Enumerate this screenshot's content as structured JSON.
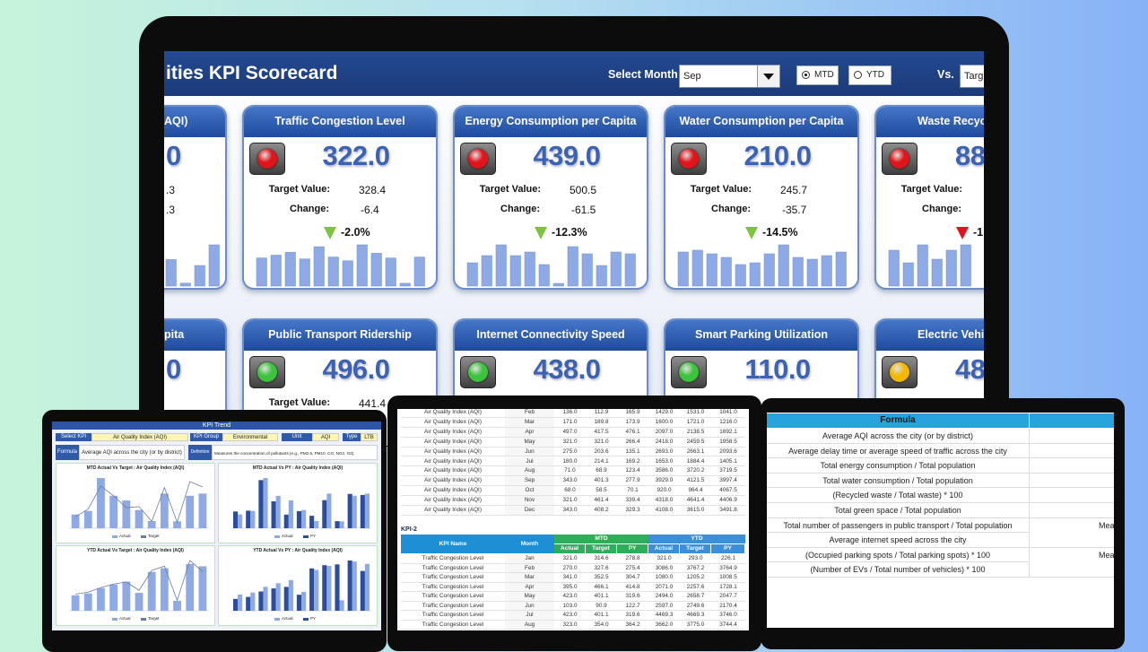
{
  "header": {
    "title": "ities KPI Scorecard",
    "month_label": "Select Month",
    "month": "Sep",
    "mtd": "MTD",
    "ytd": "YTD",
    "vs": "Vs.",
    "vs_value": "Targ"
  },
  "cards": [
    [
      {
        "title": "AQI)",
        "value": "0",
        "target": ".3",
        "change": ".3",
        "bars": [
          18,
          2,
          14,
          28
        ]
      },
      {
        "title": "Traffic Congestion Level",
        "light": "#e0141b",
        "value": "322.0",
        "target_label": "Target Value:",
        "target": "328.4",
        "change_label": "Change:",
        "change": "-6.4",
        "arrow_color": "#7ec242",
        "percent": "-2.0%",
        "bars": [
          30,
          33,
          36,
          29,
          42,
          31,
          27,
          44,
          35,
          30,
          3,
          31
        ]
      },
      {
        "title": "Energy Consumption per Capita",
        "light": "#e0141b",
        "value": "439.0",
        "target_label": "Target Value:",
        "target": "500.5",
        "change_label": "Change:",
        "change": "-61.5",
        "arrow_color": "#7ec242",
        "percent": "-12.3%",
        "bars": [
          26,
          34,
          46,
          34,
          38,
          24,
          3,
          44,
          36,
          23,
          38,
          36
        ]
      },
      {
        "title": "Water Consumption per Capita",
        "light": "#e0141b",
        "value": "210.0",
        "target_label": "Target Value:",
        "target": "245.7",
        "change_label": "Change:",
        "change": "-35.7",
        "arrow_color": "#7ec242",
        "percent": "-14.5%",
        "bars": [
          38,
          40,
          36,
          32,
          24,
          26,
          36,
          46,
          32,
          30,
          34,
          38
        ]
      },
      {
        "title": "Waste Recycli",
        "light": "#e0141b",
        "value": "88",
        "target_label": "Target Value:",
        "change_label": "Change:",
        "arrow_color": "#e0141b",
        "percent": "-1",
        "bars": [
          40,
          26,
          46,
          30,
          40,
          46
        ]
      }
    ],
    [
      {
        "title": "pita",
        "value": "0"
      },
      {
        "title": "Public Transport Ridership",
        "light": "#3cc43c",
        "value": "496.0",
        "target_label": "Target Value:",
        "target": "441.4"
      },
      {
        "title": "Internet Connectivity Speed",
        "light": "#3cc43c",
        "value": "438.0"
      },
      {
        "title": "Smart Parking Utilization",
        "light": "#3cc43c",
        "value": "110.0"
      },
      {
        "title": "Electric Vehicle (EV)",
        "light": "#f4b800",
        "value": "48"
      }
    ]
  ],
  "kpi_trend": {
    "title": "KPI Trend",
    "fields": [
      {
        "label": "Select KPI",
        "value": "Air Quality Index (AQI)"
      },
      {
        "label": "KPI Group",
        "value": "Environmental"
      },
      {
        "label": "Unit",
        "value": "AQI"
      },
      {
        "label": "Type",
        "value": "LTB"
      }
    ],
    "formula_label": "Formula",
    "formula": "Average AQI across the city (or by district)",
    "definition_label": "Definition",
    "definition": "Measures the concentration of pollutants (e.g., PM2.5, PM10, CO, NO2, O3).",
    "charts": [
      {
        "title": "MTD Actual Vs Target : Air Quality Index (AQI)",
        "legend": [
          "Actual",
          "Target"
        ]
      },
      {
        "title": "MTD Actual Vs PY : Air Quality Index (AQI)",
        "legend": [
          "Actual",
          "PY"
        ]
      },
      {
        "title": "YTD Actual Vs Target : Air Quality Index (AQI)",
        "legend": [
          "Actual",
          "Target"
        ]
      },
      {
        "title": "YTD Actual Vs PY : Air Quality Index (AQI)",
        "legend": [
          "Actual",
          "PY"
        ]
      }
    ]
  },
  "kpi1_table": {
    "rows": [
      [
        "Air Quality Index (AQI)",
        "Feb",
        "136.0",
        "112.9",
        "165.9",
        "1429.0",
        "1531.0",
        "1041.0"
      ],
      [
        "Air Quality Index (AQI)",
        "Mar",
        "171.0",
        "189.8",
        "173.9",
        "1600.0",
        "1721.0",
        "1216.0"
      ],
      [
        "Air Quality Index (AQI)",
        "Apr",
        "497.0",
        "417.5",
        "476.1",
        "2097.0",
        "2138.5",
        "1692.1"
      ],
      [
        "Air Quality Index (AQI)",
        "May",
        "321.0",
        "321.0",
        "266.4",
        "2418.0",
        "2459.5",
        "1958.5"
      ],
      [
        "Air Quality Index (AQI)",
        "Jun",
        "275.0",
        "203.6",
        "135.1",
        "2693.0",
        "2663.1",
        "2093.6"
      ],
      [
        "Air Quality Index (AQI)",
        "Jul",
        "180.0",
        "214.1",
        "169.2",
        "1653.0",
        "1884.4",
        "1405.1"
      ],
      [
        "Air Quality Index (AQI)",
        "Aug",
        "71.0",
        "68.9",
        "123.4",
        "3586.0",
        "3720.2",
        "3719.5"
      ],
      [
        "Air Quality Index (AQI)",
        "Sep",
        "343.0",
        "401.3",
        "277.9",
        "3929.0",
        "4121.5",
        "3997.4"
      ],
      [
        "Air Quality Index (AQI)",
        "Oct",
        "68.0",
        "58.5",
        "70.1",
        "920.0",
        "964.4",
        "4067.5"
      ],
      [
        "Air Quality Index (AQI)",
        "Nov",
        "321.0",
        "461.4",
        "339.4",
        "4318.0",
        "4641.4",
        "4406.9"
      ],
      [
        "Air Quality Index (AQI)",
        "Dec",
        "343.0",
        "408.2",
        "329.3",
        "4108.0",
        "3615.0",
        "3491.8"
      ]
    ]
  },
  "kpi2_table": {
    "label": "KPI-2",
    "kpi_name": "KPI Name",
    "month": "Month",
    "mtd": "MTD",
    "ytd": "YTD",
    "sub": [
      "Actual",
      "Target",
      "PY",
      "Actual",
      "Target",
      "PY"
    ],
    "rows": [
      [
        "Traffic Congestion Level",
        "Jan",
        "321.0",
        "314.6",
        "278.8",
        "321.0",
        "293.0",
        "226.1"
      ],
      [
        "Traffic Congestion Level",
        "Feb",
        "270.0",
        "327.6",
        "275.4",
        "3086.0",
        "3767.2",
        "3764.9"
      ],
      [
        "Traffic Congestion Level",
        "Mar",
        "341.0",
        "352.5",
        "304.7",
        "1080.0",
        "1205.2",
        "1008.5"
      ],
      [
        "Traffic Congestion Level",
        "Apr",
        "395.0",
        "466.1",
        "414.8",
        "2071.0",
        "2257.6",
        "1728.1"
      ],
      [
        "Traffic Congestion Level",
        "May",
        "423.0",
        "401.1",
        "319.6",
        "2494.0",
        "2658.7",
        "2047.7"
      ],
      [
        "Traffic Congestion Level",
        "Jun",
        "103.0",
        "90.9",
        "122.7",
        "2597.0",
        "2749.6",
        "2170.4"
      ],
      [
        "Traffic Congestion Level",
        "Jul",
        "423.0",
        "401.1",
        "319.6",
        "4469.3",
        "4669.3",
        "3746.0"
      ],
      [
        "Traffic Congestion Level",
        "Aug",
        "323.0",
        "354.0",
        "364.2",
        "3662.0",
        "3775.0",
        "3744.4"
      ]
    ]
  },
  "formula_table": {
    "header": "Formula",
    "rows": [
      [
        "Average AQI across the city (or by district)"
      ],
      [
        "Average delay time or average speed of traffic across the city"
      ],
      [
        "Total energy consumption / Total population"
      ],
      [
        "Total water consumption / Total population"
      ],
      [
        "(Recycled waste / Total waste) * 100"
      ],
      [
        "Total green space / Total population"
      ],
      [
        "Total number of passengers in public transport / Total population",
        "Mea"
      ],
      [
        "Average internet speed across the city"
      ],
      [
        "(Occupied parking spots / Total parking spots) * 100",
        "Mea"
      ],
      [
        "(Number of EVs / Total number of vehicles) * 100"
      ]
    ]
  }
}
